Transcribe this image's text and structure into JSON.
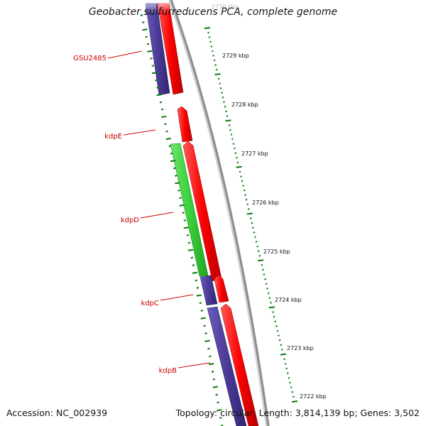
{
  "title": "Geobacter sulfurreducens PCA, complete genome",
  "footer": {
    "accession": "Accession: NC_002939",
    "topology": "Topology: circular; Length: 3,814,139 bp; Genes: 3,502"
  },
  "colors": {
    "backbone": "#8c8c8c",
    "tick": "#0a7a0a",
    "gene_label": "#cc0000",
    "cds_forward": "#ff0000",
    "cds_reverse": "#4b3b99",
    "highlight": "#3bd13b"
  },
  "scale": {
    "labels": [
      "2730 kbp",
      "2729 kbp",
      "2728 kbp",
      "2727 kbp",
      "2726 kbp",
      "2725 kbp",
      "2724 kbp",
      "2723 kbp",
      "2722 kbp"
    ]
  },
  "genes": [
    {
      "label": "GSU2485"
    },
    {
      "label": "kdpE"
    },
    {
      "label": "kdpD"
    },
    {
      "label": "kdpC"
    },
    {
      "label": "kdpB"
    }
  ]
}
